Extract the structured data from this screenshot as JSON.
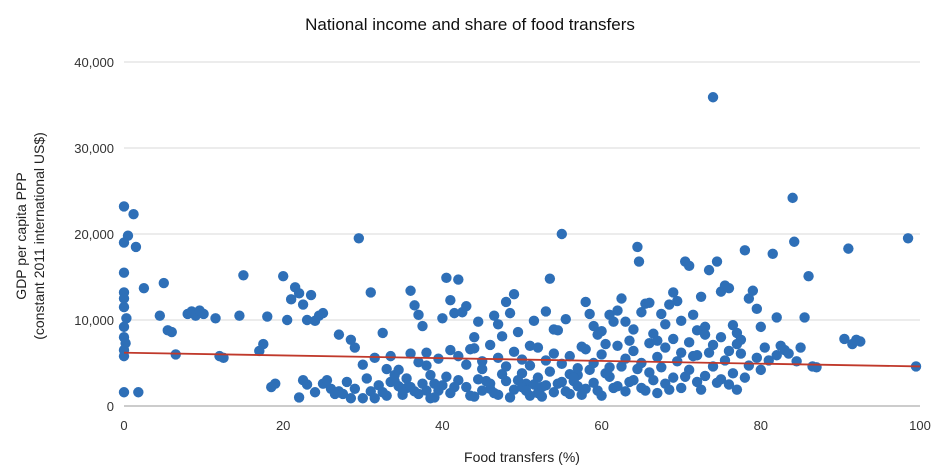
{
  "chart_data": {
    "type": "scatter",
    "title": "National income and share of food transfers",
    "xlabel": "Food transfers (%)",
    "ylabel_lines": [
      "GDP per capita PPP",
      "(constant 2011 international US$)"
    ],
    "xlim": [
      0,
      100
    ],
    "ylim": [
      0,
      40000
    ],
    "x_ticks": [
      0,
      20,
      40,
      60,
      80,
      100
    ],
    "x_tick_labels": [
      "0",
      "20",
      "40",
      "60",
      "80",
      "100"
    ],
    "y_ticks": [
      0,
      10000,
      20000,
      30000,
      40000
    ],
    "y_tick_labels": [
      "0",
      "10,000",
      "20,000",
      "30,000",
      "40,000"
    ],
    "grid": "horizontal",
    "point_color": "#2e6fb7",
    "trend_color": "#c0392b",
    "trendline": {
      "x": [
        0,
        100
      ],
      "y": [
        6200,
        4600
      ]
    },
    "points": [
      [
        0,
        23200
      ],
      [
        0.5,
        19800
      ],
      [
        0,
        19000
      ],
      [
        1.2,
        22300
      ],
      [
        1.5,
        18500
      ],
      [
        0,
        15500
      ],
      [
        0,
        13200
      ],
      [
        0,
        12500
      ],
      [
        0,
        11500
      ],
      [
        0.3,
        10200
      ],
      [
        0,
        9200
      ],
      [
        0,
        8000
      ],
      [
        0.2,
        7300
      ],
      [
        0,
        6500
      ],
      [
        0,
        5800
      ],
      [
        0,
        1600
      ],
      [
        1.8,
        1600
      ],
      [
        2.5,
        13700
      ],
      [
        4.5,
        10500
      ],
      [
        5,
        14300
      ],
      [
        5.5,
        8800
      ],
      [
        6,
        8600
      ],
      [
        6.5,
        6000
      ],
      [
        8,
        10700
      ],
      [
        8.5,
        11000
      ],
      [
        9,
        10500
      ],
      [
        9.5,
        11100
      ],
      [
        10,
        10700
      ],
      [
        11.5,
        10200
      ],
      [
        12,
        5800
      ],
      [
        12.5,
        5600
      ],
      [
        14.5,
        10500
      ],
      [
        15,
        15200
      ],
      [
        17,
        6400
      ],
      [
        17.5,
        7200
      ],
      [
        18,
        10400
      ],
      [
        18.5,
        2200
      ],
      [
        19,
        2600
      ],
      [
        20,
        15100
      ],
      [
        20.5,
        10000
      ],
      [
        21,
        12400
      ],
      [
        21.5,
        13800
      ],
      [
        22,
        13100
      ],
      [
        22.5,
        11800
      ],
      [
        23,
        10000
      ],
      [
        23.5,
        12900
      ],
      [
        24,
        9900
      ],
      [
        24.5,
        10500
      ],
      [
        25,
        10800
      ],
      [
        23,
        2500
      ],
      [
        24,
        1600
      ],
      [
        25,
        2600
      ],
      [
        25.5,
        3000
      ],
      [
        26,
        2000
      ],
      [
        27,
        1700
      ],
      [
        27.5,
        1400
      ],
      [
        28,
        2800
      ],
      [
        28.5,
        900
      ],
      [
        27,
        8300
      ],
      [
        28.5,
        7700
      ],
      [
        29,
        6800
      ],
      [
        29.5,
        19500
      ],
      [
        30,
        4800
      ],
      [
        31,
        13200
      ],
      [
        31.5,
        5600
      ],
      [
        32.5,
        8500
      ],
      [
        33,
        4300
      ],
      [
        33.5,
        2800
      ],
      [
        34,
        3600
      ],
      [
        34.5,
        2300
      ],
      [
        35,
        1300
      ],
      [
        35.5,
        2100
      ],
      [
        36,
        13400
      ],
      [
        36.5,
        11700
      ],
      [
        37,
        10600
      ],
      [
        37.5,
        9300
      ],
      [
        38,
        6200
      ],
      [
        38.5,
        3600
      ],
      [
        39,
        2600
      ],
      [
        39.5,
        1800
      ],
      [
        40,
        10200
      ],
      [
        40.5,
        14900
      ],
      [
        41,
        12300
      ],
      [
        41.5,
        10800
      ],
      [
        42,
        14700
      ],
      [
        42.5,
        10900
      ],
      [
        43,
        11600
      ],
      [
        43.5,
        6600
      ],
      [
        44,
        8000
      ],
      [
        44.5,
        9800
      ],
      [
        45,
        4300
      ],
      [
        45.5,
        2900
      ],
      [
        46,
        2000
      ],
      [
        46.5,
        10500
      ],
      [
        47,
        9500
      ],
      [
        47.5,
        8100
      ],
      [
        48,
        12100
      ],
      [
        48.5,
        10800
      ],
      [
        49,
        13000
      ],
      [
        49.5,
        8600
      ],
      [
        50,
        3800
      ],
      [
        50.5,
        2600
      ],
      [
        51,
        7000
      ],
      [
        51.5,
        9900
      ],
      [
        52,
        1500
      ],
      [
        52.5,
        2200
      ],
      [
        53,
        11000
      ],
      [
        53.5,
        14800
      ],
      [
        54,
        8900
      ],
      [
        54.5,
        8800
      ],
      [
        55,
        20000
      ],
      [
        55.5,
        10100
      ],
      [
        56,
        3700
      ],
      [
        56.5,
        2900
      ],
      [
        57,
        2300
      ],
      [
        57.5,
        6900
      ],
      [
        58,
        12100
      ],
      [
        58.5,
        10700
      ],
      [
        59,
        9300
      ],
      [
        59.5,
        8300
      ],
      [
        60,
        8700
      ],
      [
        60.5,
        7200
      ],
      [
        61,
        10600
      ],
      [
        61.5,
        9800
      ],
      [
        62,
        11100
      ],
      [
        62.5,
        12500
      ],
      [
        63,
        9800
      ],
      [
        63.5,
        7600
      ],
      [
        64,
        8900
      ],
      [
        64.5,
        18500
      ],
      [
        64.7,
        16800
      ],
      [
        65,
        10900
      ],
      [
        65.5,
        11900
      ],
      [
        66,
        12000
      ],
      [
        66.5,
        8400
      ],
      [
        67,
        7600
      ],
      [
        67.5,
        10700
      ],
      [
        68,
        9500
      ],
      [
        68.5,
        11800
      ],
      [
        69,
        13200
      ],
      [
        69.5,
        12200
      ],
      [
        70,
        9900
      ],
      [
        70.5,
        16800
      ],
      [
        71,
        16300
      ],
      [
        71.5,
        10600
      ],
      [
        72,
        8800
      ],
      [
        72.5,
        12700
      ],
      [
        73,
        9200
      ],
      [
        73.5,
        15800
      ],
      [
        74,
        35900
      ],
      [
        74.5,
        16800
      ],
      [
        75,
        13300
      ],
      [
        75.5,
        14000
      ],
      [
        76,
        13700
      ],
      [
        76.5,
        9400
      ],
      [
        77,
        8500
      ],
      [
        77.5,
        7700
      ],
      [
        78,
        18100
      ],
      [
        78.5,
        12500
      ],
      [
        79,
        13400
      ],
      [
        79.5,
        11300
      ],
      [
        80,
        9200
      ],
      [
        80.5,
        6800
      ],
      [
        81.5,
        17700
      ],
      [
        82,
        10300
      ],
      [
        82.5,
        7000
      ],
      [
        83,
        6500
      ],
      [
        84,
        24200
      ],
      [
        84.2,
        19100
      ],
      [
        85.5,
        10300
      ],
      [
        86,
        15100
      ],
      [
        86.5,
        4600
      ],
      [
        87,
        4500
      ],
      [
        90.5,
        7800
      ],
      [
        91,
        18300
      ],
      [
        91.5,
        7200
      ],
      [
        92,
        7700
      ],
      [
        92.5,
        7500
      ],
      [
        98.5,
        19500
      ],
      [
        99.5,
        4600
      ],
      [
        30,
        900
      ],
      [
        31,
        1700
      ],
      [
        32,
        2400
      ],
      [
        33,
        1200
      ],
      [
        34,
        2900
      ],
      [
        35,
        1900
      ],
      [
        36,
        2200
      ],
      [
        37,
        1400
      ],
      [
        38,
        1800
      ],
      [
        39,
        1000
      ],
      [
        40,
        2400
      ],
      [
        41,
        1500
      ],
      [
        42,
        3000
      ],
      [
        43,
        2200
      ],
      [
        44,
        1100
      ],
      [
        45,
        1800
      ],
      [
        46,
        2600
      ],
      [
        47,
        1300
      ],
      [
        48,
        2900
      ],
      [
        49,
        1900
      ],
      [
        50,
        2200
      ],
      [
        51,
        1200
      ],
      [
        52,
        3300
      ],
      [
        53,
        2400
      ],
      [
        54,
        1600
      ],
      [
        55,
        2800
      ],
      [
        56,
        1400
      ],
      [
        57,
        3600
      ],
      [
        58,
        2000
      ],
      [
        59,
        2700
      ],
      [
        60,
        1200
      ],
      [
        61,
        3400
      ],
      [
        62,
        2300
      ],
      [
        63,
        1700
      ],
      [
        64,
        3000
      ],
      [
        65,
        2100
      ],
      [
        66,
        3900
      ],
      [
        67,
        1500
      ],
      [
        68,
        2600
      ],
      [
        69,
        3300
      ],
      [
        70,
        2100
      ],
      [
        71,
        4200
      ],
      [
        72,
        2800
      ],
      [
        73,
        3500
      ],
      [
        74,
        4600
      ],
      [
        75,
        3100
      ],
      [
        76,
        2500
      ],
      [
        77,
        1900
      ],
      [
        78,
        3300
      ],
      [
        80,
        4200
      ],
      [
        35.5,
        3200
      ],
      [
        36.5,
        1700
      ],
      [
        37.5,
        2600
      ],
      [
        38.5,
        900
      ],
      [
        40.5,
        3400
      ],
      [
        41.5,
        2200
      ],
      [
        43.5,
        1200
      ],
      [
        44.5,
        3100
      ],
      [
        46.5,
        1500
      ],
      [
        47.5,
        3700
      ],
      [
        48.5,
        1000
      ],
      [
        49.5,
        3000
      ],
      [
        50.5,
        1800
      ],
      [
        51.5,
        2500
      ],
      [
        52.5,
        1100
      ],
      [
        53.5,
        4000
      ],
      [
        54.5,
        2600
      ],
      [
        55.5,
        1700
      ],
      [
        56.5,
        3300
      ],
      [
        57.5,
        1300
      ],
      [
        58.5,
        4200
      ],
      [
        59.5,
        1800
      ],
      [
        60.5,
        3800
      ],
      [
        61.5,
        2100
      ],
      [
        62.5,
        4600
      ],
      [
        63.5,
        2800
      ],
      [
        64.5,
        4300
      ],
      [
        65.5,
        1800
      ],
      [
        66.5,
        3000
      ],
      [
        67.5,
        4500
      ],
      [
        68.5,
        1900
      ],
      [
        69.5,
        5200
      ],
      [
        70.5,
        3400
      ],
      [
        71.5,
        5800
      ],
      [
        72.5,
        1900
      ],
      [
        73.5,
        6200
      ],
      [
        74.5,
        2700
      ],
      [
        75.5,
        5300
      ],
      [
        76.5,
        3800
      ],
      [
        77.5,
        6100
      ],
      [
        78.5,
        4700
      ],
      [
        79.5,
        5600
      ],
      [
        81,
        5300
      ],
      [
        82,
        5900
      ],
      [
        83.5,
        6100
      ],
      [
        84.5,
        5200
      ],
      [
        85,
        6800
      ],
      [
        22,
        1000
      ],
      [
        22.5,
        3000
      ],
      [
        26.5,
        1400
      ],
      [
        29,
        2000
      ],
      [
        30.5,
        3200
      ],
      [
        31.5,
        900
      ],
      [
        32.5,
        1600
      ],
      [
        33.5,
        5800
      ],
      [
        34.5,
        4200
      ],
      [
        36,
        6100
      ],
      [
        37,
        5100
      ],
      [
        38,
        4700
      ],
      [
        39.5,
        5500
      ],
      [
        41,
        6500
      ],
      [
        42,
        5800
      ],
      [
        43,
        4800
      ],
      [
        44,
        6700
      ],
      [
        45,
        5200
      ],
      [
        46,
        7100
      ],
      [
        47,
        5600
      ],
      [
        48,
        4600
      ],
      [
        49,
        6300
      ],
      [
        50,
        5400
      ],
      [
        51,
        4700
      ],
      [
        52,
        6800
      ],
      [
        53,
        5300
      ],
      [
        54,
        6100
      ],
      [
        55,
        4900
      ],
      [
        56,
        5800
      ],
      [
        57,
        4400
      ],
      [
        58,
        6600
      ],
      [
        59,
        5000
      ],
      [
        60,
        6000
      ],
      [
        61,
        4500
      ],
      [
        62,
        7000
      ],
      [
        63,
        5500
      ],
      [
        64,
        6400
      ],
      [
        65,
        5000
      ],
      [
        66,
        7300
      ],
      [
        67,
        5700
      ],
      [
        68,
        6800
      ],
      [
        69,
        7800
      ],
      [
        70,
        6200
      ],
      [
        71,
        7400
      ],
      [
        72,
        5900
      ],
      [
        73,
        8300
      ],
      [
        74,
        7100
      ],
      [
        75,
        8000
      ],
      [
        76,
        6400
      ],
      [
        77,
        7200
      ]
    ]
  }
}
